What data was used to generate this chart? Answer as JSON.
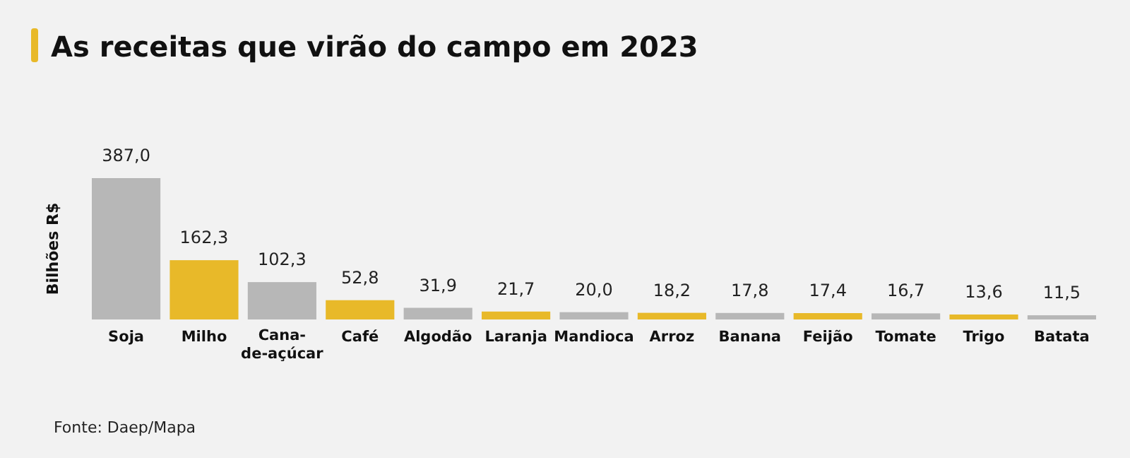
{
  "chart_data": {
    "type": "bar",
    "title": "As receitas que virão do campo em 2023",
    "ylabel": "Bilhões R$",
    "categories": [
      "Soja",
      "Milho",
      "Cana-de-açúcar",
      "Café",
      "Algodão",
      "Laranja",
      "Mandioca",
      "Arroz",
      "Banana",
      "Feijão",
      "Tomate",
      "Trigo",
      "Batata"
    ],
    "values": [
      387.0,
      162.3,
      102.3,
      52.8,
      31.9,
      21.7,
      20.0,
      18.2,
      17.8,
      17.4,
      16.7,
      13.6,
      11.5
    ],
    "value_labels": [
      "387,0",
      "162,3",
      "102,3",
      "52,8",
      "31,9",
      "21,7",
      "20,0",
      "18,2",
      "17,8",
      "17,4",
      "16,7",
      "13,6",
      "11,5"
    ],
    "colors": [
      "#b7b7b7",
      "#e8b929",
      "#b7b7b7",
      "#e8b929",
      "#b7b7b7",
      "#e8b929",
      "#b7b7b7",
      "#e8b929",
      "#b7b7b7",
      "#e8b929",
      "#b7b7b7",
      "#e8b929",
      "#b7b7b7"
    ],
    "annotations": [
      "Fonte: Daep/Mapa"
    ]
  }
}
